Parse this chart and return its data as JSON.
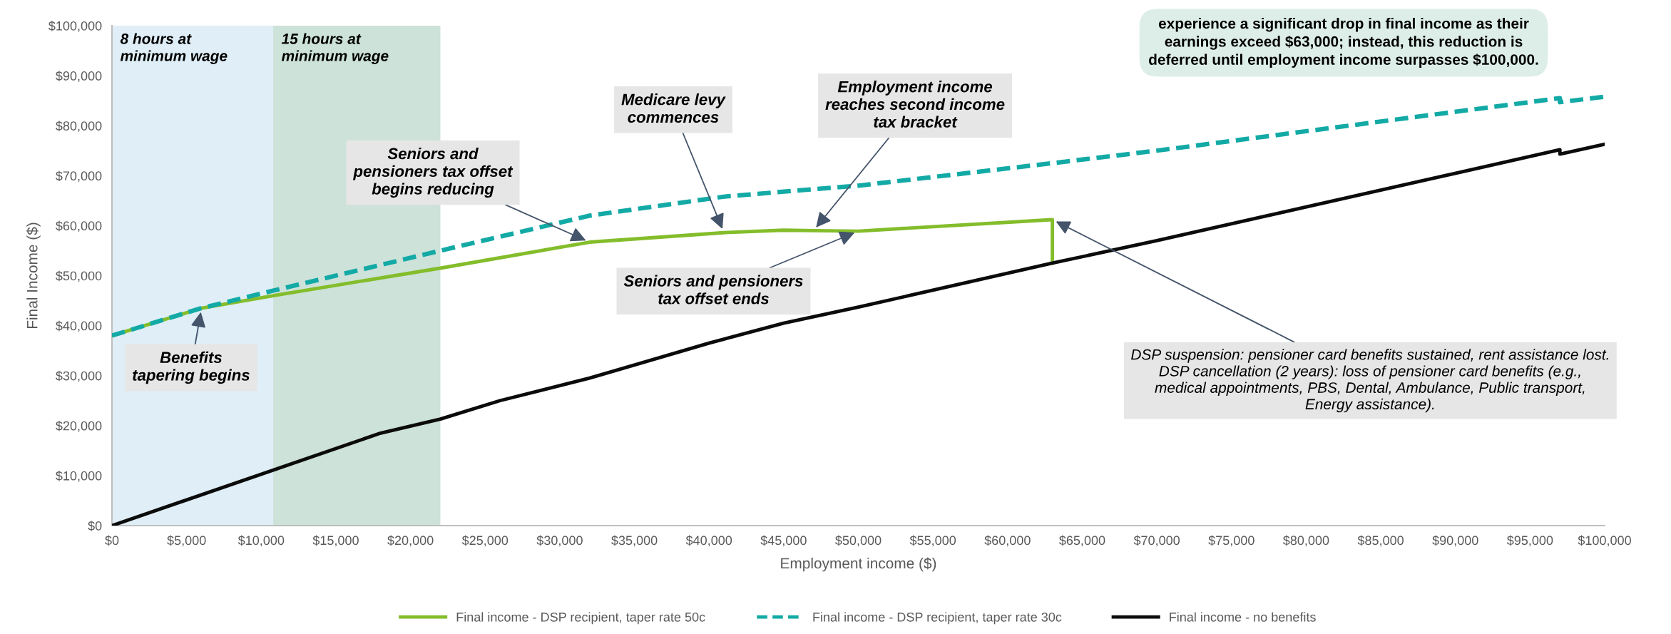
{
  "chart_data": {
    "type": "line",
    "xlabel": "Employment income ($)",
    "ylabel": "Final Income ($)",
    "series": [
      {
        "name": "Final income - DSP recipient, taper rate 50c",
        "color": "#84bd2b",
        "line_style": "solid",
        "x": [
          0,
          6000,
          10800,
          22000,
          32000,
          41000,
          45000,
          47000,
          50000,
          63000,
          63000
        ],
        "values": [
          38000,
          43500,
          46000,
          51500,
          56700,
          58600,
          59100,
          59000,
          58900,
          61200,
          52500
        ]
      },
      {
        "name": "Final income - DSP recipient, taper rate 30c",
        "color": "#13aaa6",
        "line_style": "dashed",
        "x": [
          0,
          6000,
          10800,
          22000,
          32000,
          41000,
          47000,
          50000,
          63000,
          70000,
          97000,
          97000,
          100000
        ],
        "values": [
          38000,
          43500,
          47000,
          55000,
          62000,
          65800,
          67300,
          68000,
          72500,
          75000,
          85500,
          84700,
          85800
        ]
      },
      {
        "name": "Final income - no benefits",
        "color": "#0b0b0b",
        "line_style": "solid",
        "x": [
          0,
          18000,
          22000,
          26000,
          32000,
          40000,
          45000,
          50000,
          63000,
          70000,
          97000,
          97000,
          100000
        ],
        "values": [
          0,
          18500,
          21300,
          25000,
          29500,
          36500,
          40500,
          43700,
          52500,
          57000,
          75200,
          74300,
          76300
        ]
      }
    ],
    "xlim": [
      0,
      100000
    ],
    "xticks": [
      {
        "value": 0,
        "label": "$0"
      },
      {
        "value": 5000,
        "label": "$5,000"
      },
      {
        "value": 10000,
        "label": "$10,000"
      },
      {
        "value": 15000,
        "label": "$15,000"
      },
      {
        "value": 20000,
        "label": "$20,000"
      },
      {
        "value": 25000,
        "label": "$25,000"
      },
      {
        "value": 30000,
        "label": "$30,000"
      },
      {
        "value": 35000,
        "label": "$35,000"
      },
      {
        "value": 40000,
        "label": "$40,000"
      },
      {
        "value": 45000,
        "label": "$45,000"
      },
      {
        "value": 50000,
        "label": "$50,000"
      },
      {
        "value": 55000,
        "label": "$55,000"
      },
      {
        "value": 60000,
        "label": "$60,000"
      },
      {
        "value": 65000,
        "label": "$65,000"
      },
      {
        "value": 70000,
        "label": "$70,000"
      },
      {
        "value": 75000,
        "label": "$75,000"
      },
      {
        "value": 80000,
        "label": "$80,000"
      },
      {
        "value": 85000,
        "label": "$85,000"
      },
      {
        "value": 90000,
        "label": "$90,000"
      },
      {
        "value": 95000,
        "label": "$95,000"
      },
      {
        "value": 100000,
        "label": "$100,000"
      }
    ],
    "ylim": [
      0,
      100000
    ],
    "yticks": [
      {
        "value": 0,
        "label": "$0"
      },
      {
        "value": 10000,
        "label": "$10,000"
      },
      {
        "value": 20000,
        "label": "$20,000"
      },
      {
        "value": 30000,
        "label": "$30,000"
      },
      {
        "value": 40000,
        "label": "$40,000"
      },
      {
        "value": 50000,
        "label": "$50,000"
      },
      {
        "value": 60000,
        "label": "$60,000"
      },
      {
        "value": 70000,
        "label": "$70,000"
      },
      {
        "value": 80000,
        "label": "$80,000"
      },
      {
        "value": 90000,
        "label": "$90,000"
      },
      {
        "value": 100000,
        "label": "$100,000"
      }
    ],
    "bands": [
      {
        "axis": "x",
        "from": 0,
        "to": 10800,
        "label": "8 hours at\nminimum wage",
        "color": "#dfeef7"
      },
      {
        "axis": "x",
        "from": 10800,
        "to": 22000,
        "label": "15 hours at\nminimum wage",
        "color": "#cde2d9"
      }
    ],
    "annotations": [
      {
        "text": "Benefits\ntapering begins",
        "x": 6000,
        "y": 43500
      },
      {
        "text": "Seniors and\npensioners tax offset\nbegins reducing",
        "x": 32000,
        "y": 56700
      },
      {
        "text": "Medicare levy\ncommences",
        "x": 41000,
        "y": 58600
      },
      {
        "text": "Employment income\nreaches second income\ntax bracket",
        "x": 47000,
        "y": 59000
      },
      {
        "text": "Seniors and pensioners\ntax offset ends",
        "x": 50000,
        "y": 58900
      },
      {
        "text": "DSP suspension: pensioner card benefits sustained, rent assistance lost.\nDSP cancellation (2 years): loss of pensioner card benefits (e.g.,\nmedical appointments, PBS, Dental, Ambulance, Public transport,\nEnergy assistance).",
        "x": 63000,
        "y": 61200
      },
      "experience a significant drop in final income as their\nearnings exceed $63,000; instead, this reduction is\ndeferred until employment income surpasses $100,000."
    ],
    "grid": false,
    "legend": "bottom",
    "marker": "none"
  }
}
